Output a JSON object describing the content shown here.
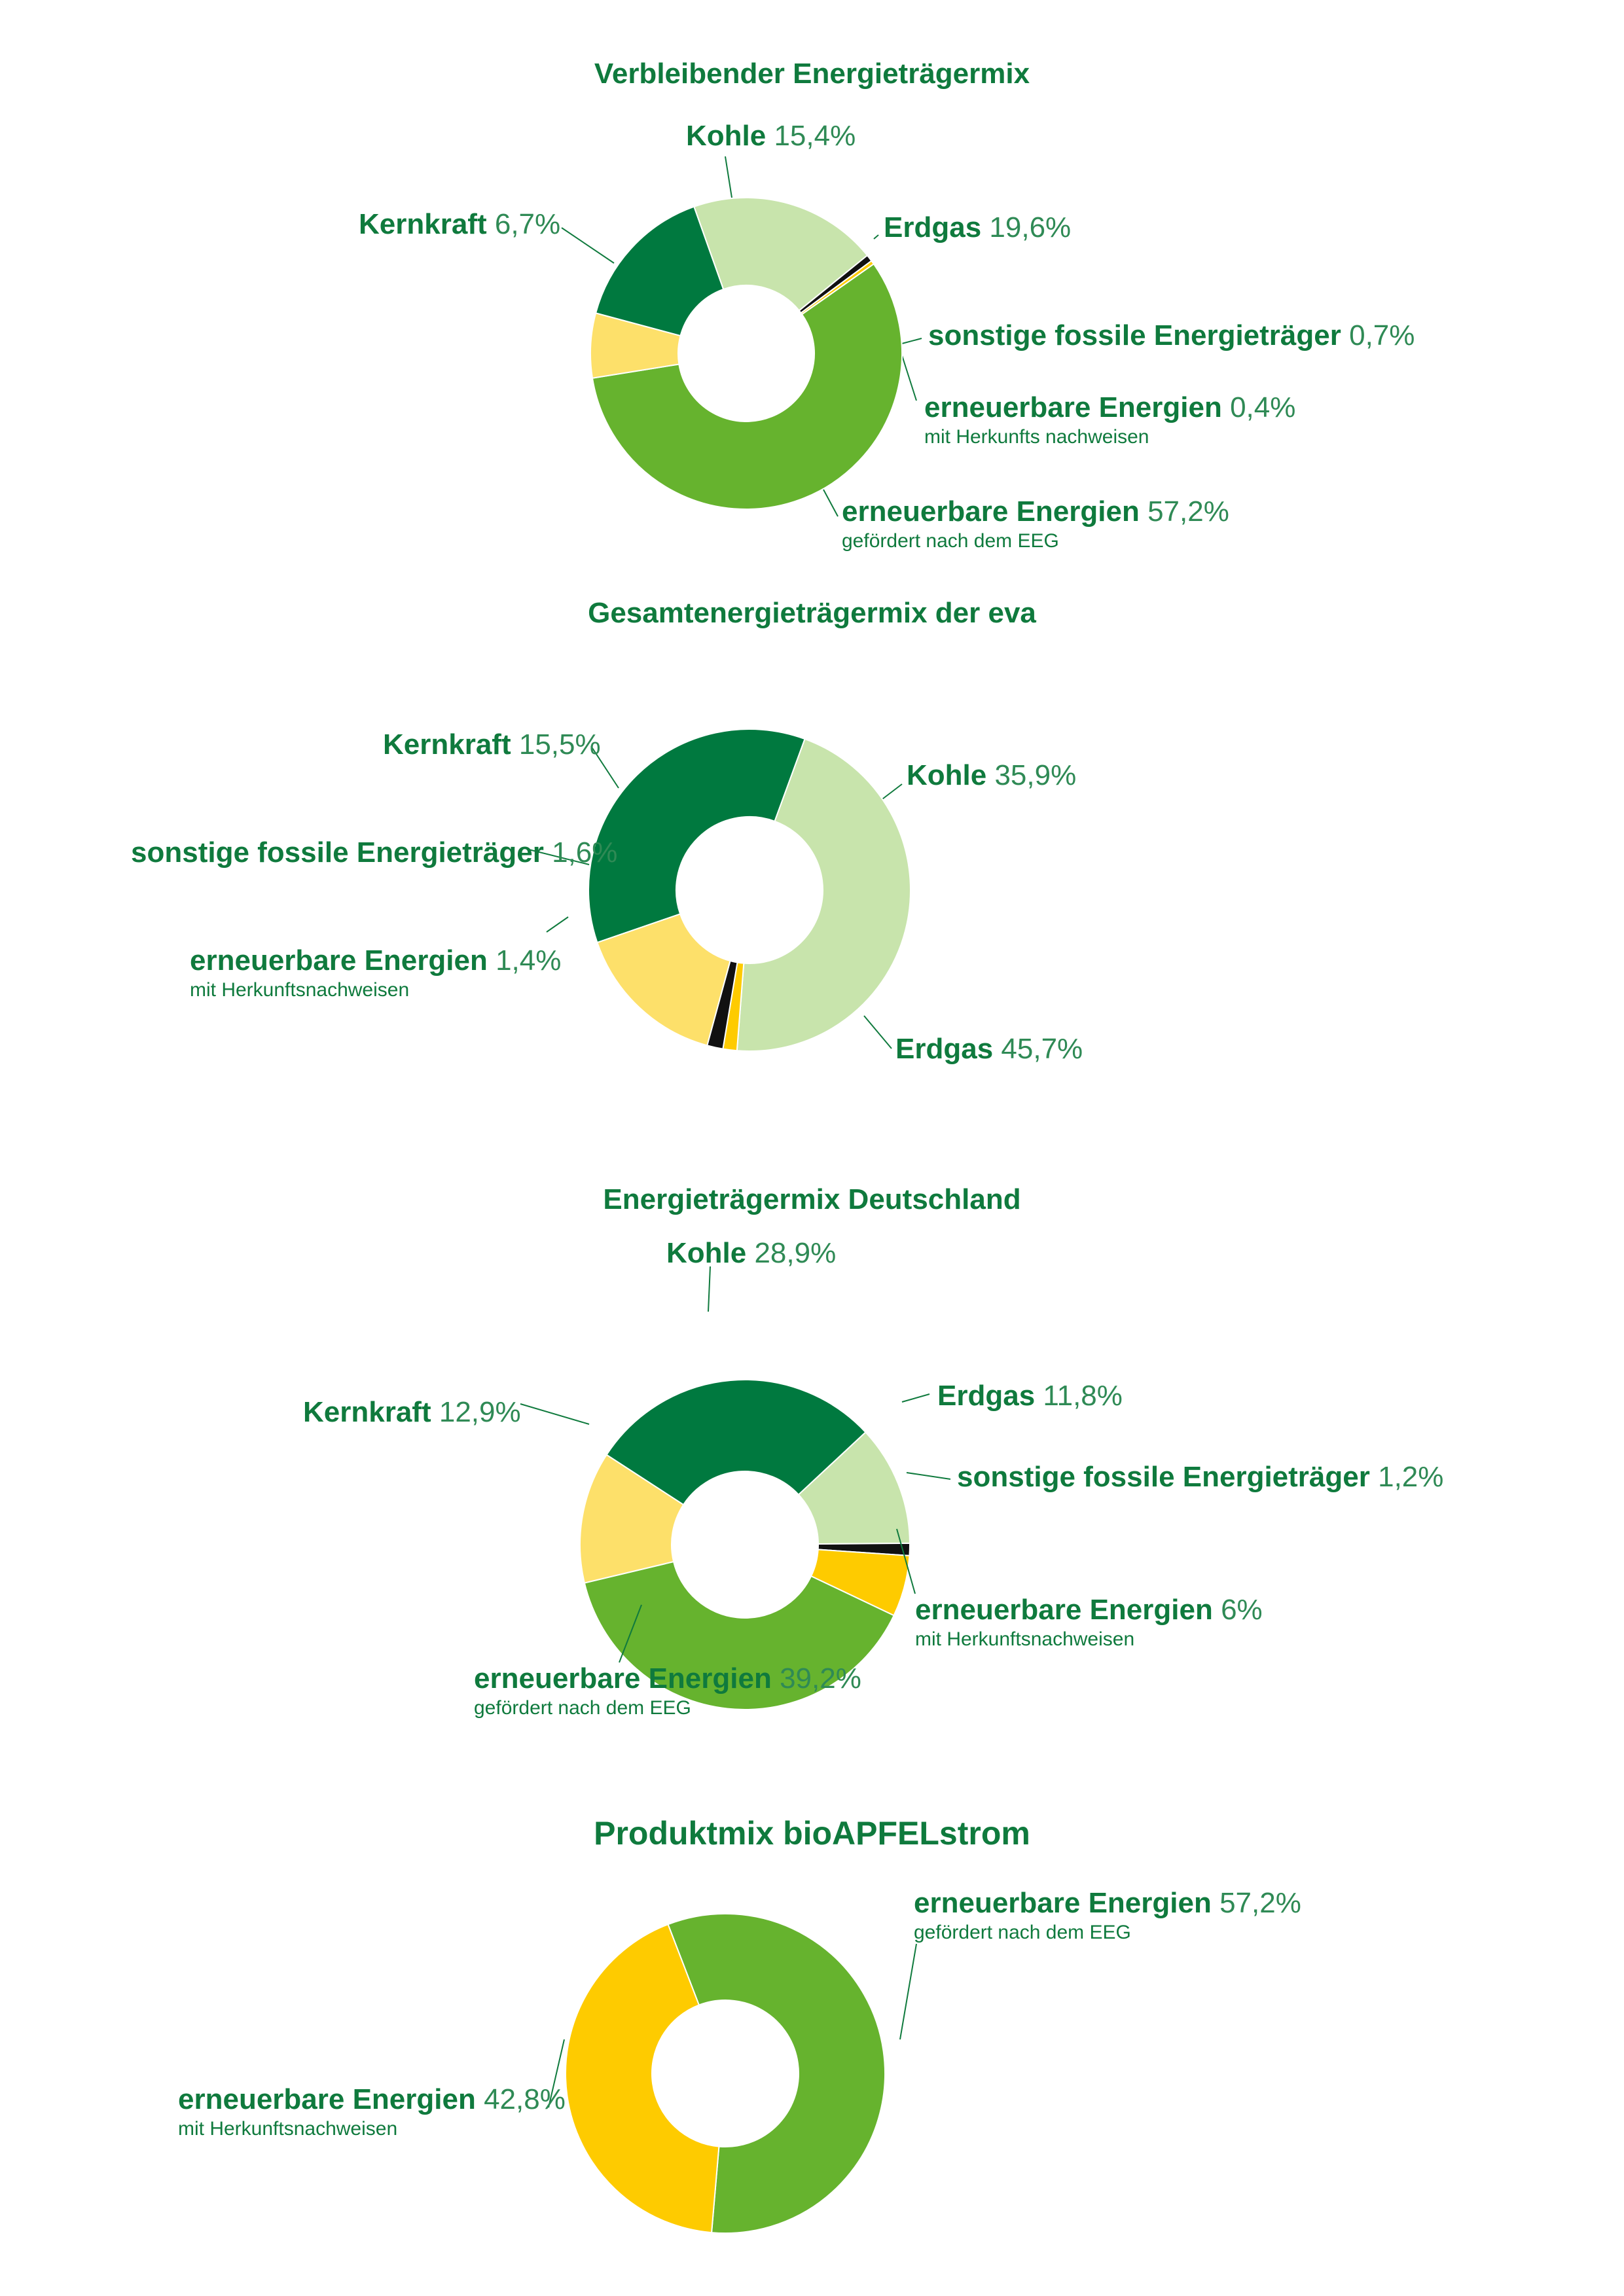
{
  "colors": {
    "kohle": "#00793f",
    "erdgas": "#c8e4ac",
    "kernkraft": "#fde06a",
    "fossil": "#111111",
    "ee_hkn": "#fecb00",
    "ee_eeg": "#66b32e",
    "text": "#0f7a3d"
  },
  "chart_data": [
    {
      "type": "pie",
      "title": "Verbleibender Energieträgermix",
      "slices": [
        {
          "label": "Kohle",
          "value": 15.4,
          "display": "15,4%",
          "color_key": "kohle",
          "sub": ""
        },
        {
          "label": "Erdgas",
          "value": 19.6,
          "display": "19,6%",
          "color_key": "erdgas",
          "sub": ""
        },
        {
          "label": "sonstige fossile Energieträger",
          "value": 0.7,
          "display": "0,7%",
          "color_key": "fossil",
          "sub": ""
        },
        {
          "label": "erneuerbare Energien",
          "value": 0.4,
          "display": "0,4%",
          "color_key": "ee_hkn",
          "sub": "mit Herkunfts nachweisen"
        },
        {
          "label": "erneuerbare Energien",
          "value": 57.2,
          "display": "57,2%",
          "color_key": "ee_eeg",
          "sub": "gefördert nach dem EEG"
        },
        {
          "label": "Kernkraft",
          "value": 6.7,
          "display": "6,7%",
          "color_key": "kernkraft",
          "sub": ""
        }
      ]
    },
    {
      "type": "pie",
      "title": "Gesamtenergieträgermix der eva",
      "slices": [
        {
          "label": "Kohle",
          "value": 35.9,
          "display": "35,9%",
          "color_key": "kohle",
          "sub": ""
        },
        {
          "label": "Erdgas",
          "value": 45.7,
          "display": "45,7%",
          "color_key": "erdgas",
          "sub": ""
        },
        {
          "label": "erneuerbare Energien",
          "value": 1.4,
          "display": "1,4%",
          "color_key": "ee_hkn",
          "sub": "mit Herkunftsnachweisen"
        },
        {
          "label": "sonstige fossile Energieträger",
          "value": 1.6,
          "display": "1,6%",
          "color_key": "fossil",
          "sub": ""
        },
        {
          "label": "Kernkraft",
          "value": 15.5,
          "display": "15,5%",
          "color_key": "kernkraft",
          "sub": ""
        }
      ]
    },
    {
      "type": "pie",
      "title": "Energieträgermix Deutschland",
      "slices": [
        {
          "label": "Kohle",
          "value": 28.9,
          "display": "28,9%",
          "color_key": "kohle",
          "sub": ""
        },
        {
          "label": "Erdgas",
          "value": 11.8,
          "display": "11,8%",
          "color_key": "erdgas",
          "sub": ""
        },
        {
          "label": "sonstige fossile Energieträger",
          "value": 1.2,
          "display": "1,2%",
          "color_key": "fossil",
          "sub": ""
        },
        {
          "label": "erneuerbare Energien",
          "value": 6,
          "display": "6%",
          "color_key": "ee_hkn",
          "sub": "mit Herkunftsnachweisen"
        },
        {
          "label": "erneuerbare Energien",
          "value": 39.2,
          "display": "39,2%",
          "color_key": "ee_eeg",
          "sub": "gefördert nach dem EEG"
        },
        {
          "label": "Kernkraft",
          "value": 12.9,
          "display": "12,9%",
          "color_key": "kernkraft",
          "sub": ""
        }
      ]
    },
    {
      "type": "pie",
      "title": "Produktmix bioAPFELstrom",
      "slices": [
        {
          "label": "erneuerbare Energien",
          "value": 57.2,
          "display": "57,2%",
          "color_key": "ee_eeg",
          "sub": "gefördert nach dem EEG"
        },
        {
          "label": "erneuerbare Energien",
          "value": 42.8,
          "display": "42,8%",
          "color_key": "ee_hkn",
          "sub": "mit Herkunftsnachweisen"
        }
      ]
    }
  ]
}
